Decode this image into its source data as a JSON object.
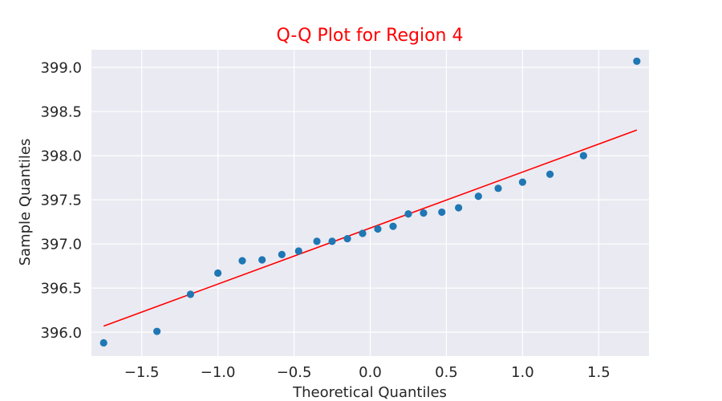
{
  "chart_data": {
    "type": "scatter",
    "title": "Q-Q Plot for Region 4",
    "xlabel": "Theoretical Quantiles",
    "ylabel": "Sample Quantiles",
    "xlim": [
      -1.83,
      1.83
    ],
    "ylim": [
      395.73,
      399.2
    ],
    "xticks": [
      -1.5,
      -1.0,
      -0.5,
      0.0,
      0.5,
      1.0,
      1.5
    ],
    "xtick_labels": [
      "−1.5",
      "−1.0",
      "−0.5",
      "0.0",
      "0.5",
      "1.0",
      "1.5"
    ],
    "yticks": [
      396.0,
      396.5,
      397.0,
      397.5,
      398.0,
      398.5,
      399.0
    ],
    "ytick_labels": [
      "396.0",
      "396.5",
      "397.0",
      "397.5",
      "398.0",
      "398.5",
      "399.0"
    ],
    "grid": true,
    "background": "#eaeaf2",
    "title_color": "#ff0000",
    "points": {
      "color": "#1f77b4",
      "x": [
        -1.75,
        -1.4,
        -1.18,
        -1.0,
        -0.84,
        -0.71,
        -0.58,
        -0.47,
        -0.35,
        -0.25,
        -0.15,
        -0.05,
        0.05,
        0.15,
        0.25,
        0.35,
        0.47,
        0.58,
        0.71,
        0.84,
        1.0,
        1.18,
        1.4,
        1.75
      ],
      "y": [
        395.88,
        396.01,
        396.43,
        396.67,
        396.81,
        396.82,
        396.88,
        396.92,
        397.03,
        397.03,
        397.06,
        397.12,
        397.17,
        397.2,
        397.34,
        397.35,
        397.36,
        397.41,
        397.54,
        397.63,
        397.7,
        397.79,
        398.0,
        399.07
      ]
    },
    "reference_line": {
      "color": "#ff0000",
      "x": [
        -1.75,
        1.75
      ],
      "y": [
        396.07,
        398.29
      ]
    }
  }
}
